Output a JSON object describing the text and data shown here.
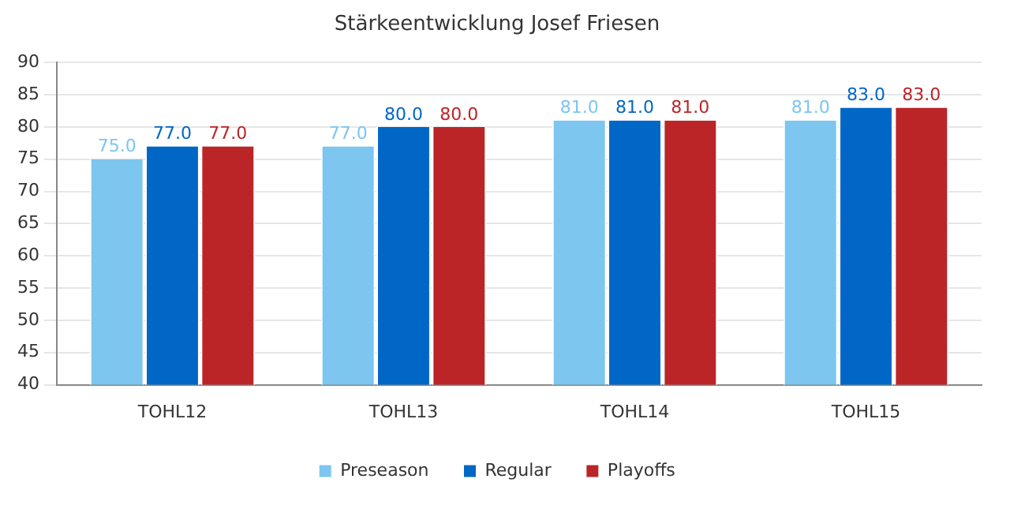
{
  "chart_data": {
    "type": "bar",
    "title": "Stärkeentwicklung Josef Friesen",
    "categories": [
      "TOHL12",
      "TOHL13",
      "TOHL14",
      "TOHL15"
    ],
    "series": [
      {
        "name": "Preseason",
        "color": "#7cc6f0",
        "values": [
          75,
          77,
          81,
          81
        ],
        "value_labels": [
          "75.0",
          "77.0",
          "81.0",
          "81.0"
        ]
      },
      {
        "name": "Regular",
        "color": "#0067c6",
        "values": [
          77,
          80,
          81,
          83
        ],
        "value_labels": [
          "77.0",
          "80.0",
          "81.0",
          "83.0"
        ]
      },
      {
        "name": "Playoffs",
        "color": "#bb2528",
        "values": [
          77,
          80,
          81,
          83
        ],
        "value_labels": [
          "77.0",
          "80.0",
          "81.0",
          "83.0"
        ]
      }
    ],
    "ylim": [
      40,
      90
    ],
    "yticks": [
      40,
      45,
      50,
      55,
      60,
      65,
      70,
      75,
      80,
      85,
      90
    ],
    "grid": "y",
    "legend": "bottom"
  }
}
